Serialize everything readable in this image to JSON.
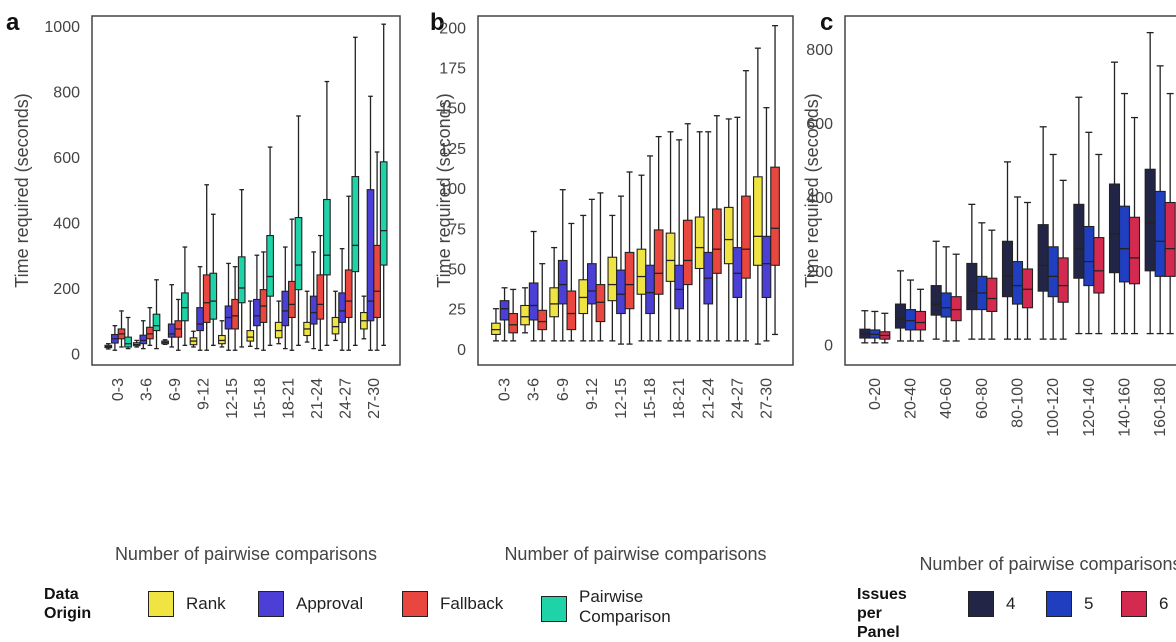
{
  "chart_data": [
    {
      "panel": "a",
      "type": "box",
      "xlabel": "Number of pairwise comparisons",
      "ylabel": "Time required (seconds)",
      "ylim": [
        -35,
        1030
      ],
      "yticks": [
        0,
        200,
        400,
        600,
        800,
        1000
      ],
      "categories": [
        "0-3",
        "3-6",
        "6-9",
        "9-12",
        "12-15",
        "15-18",
        "18-21",
        "21-24",
        "24-27",
        "27-30"
      ],
      "series": [
        {
          "name": "Rank",
          "color": "#f0e442",
          "boxes": [
            {
              "min": 14,
              "q1": 18,
              "med": 21,
              "q3": 25,
              "max": 30
            },
            {
              "min": 20,
              "q1": 24,
              "med": 28,
              "q3": 33,
              "max": 40
            },
            {
              "min": 28,
              "q1": 30,
              "med": 34,
              "q3": 38,
              "max": 42
            },
            {
              "min": 20,
              "q1": 27,
              "med": 38,
              "q3": 48,
              "max": 68
            },
            {
              "min": 20,
              "q1": 30,
              "med": 40,
              "q3": 55,
              "max": 100
            },
            {
              "min": 22,
              "q1": 38,
              "med": 50,
              "q3": 70,
              "max": 160
            },
            {
              "min": 30,
              "q1": 48,
              "med": 70,
              "q3": 95,
              "max": 160
            },
            {
              "min": 35,
              "q1": 55,
              "med": 75,
              "q3": 95,
              "max": 190
            },
            {
              "min": 40,
              "q1": 60,
              "med": 82,
              "q3": 110,
              "max": 190
            },
            {
              "min": 45,
              "q1": 75,
              "med": 100,
              "q3": 125,
              "max": 175
            }
          ]
        },
        {
          "name": "Approval",
          "color": "#4b3fd6",
          "boxes": [
            {
              "min": 10,
              "q1": 32,
              "med": 45,
              "q3": 58,
              "max": 85
            },
            {
              "min": 15,
              "q1": 30,
              "med": 40,
              "q3": 56,
              "max": 100
            },
            {
              "min": 20,
              "q1": 50,
              "med": 60,
              "q3": 90,
              "max": 210
            },
            {
              "min": 10,
              "q1": 70,
              "med": 90,
              "q3": 140,
              "max": 265
            },
            {
              "min": 10,
              "q1": 75,
              "med": 110,
              "q3": 145,
              "max": 275
            },
            {
              "min": 15,
              "q1": 85,
              "med": 115,
              "q3": 165,
              "max": 300
            },
            {
              "min": 15,
              "q1": 85,
              "med": 130,
              "q3": 190,
              "max": 325
            },
            {
              "min": 15,
              "q1": 90,
              "med": 125,
              "q3": 175,
              "max": 310
            },
            {
              "min": 10,
              "q1": 95,
              "med": 130,
              "q3": 185,
              "max": 320
            },
            {
              "min": 10,
              "q1": 100,
              "med": 160,
              "q3": 500,
              "max": 785
            }
          ]
        },
        {
          "name": "Fallback",
          "color": "#e8463f",
          "boxes": [
            {
              "min": 20,
              "q1": 45,
              "med": 60,
              "q3": 75,
              "max": 130
            },
            {
              "min": 25,
              "q1": 45,
              "med": 60,
              "q3": 80,
              "max": 140
            },
            {
              "min": 10,
              "q1": 50,
              "med": 75,
              "q3": 100,
              "max": 165
            },
            {
              "min": 10,
              "q1": 95,
              "med": 155,
              "q3": 240,
              "max": 515
            },
            {
              "min": 10,
              "q1": 75,
              "med": 115,
              "q3": 165,
              "max": 265
            },
            {
              "min": 10,
              "q1": 95,
              "med": 145,
              "q3": 195,
              "max": 310
            },
            {
              "min": 10,
              "q1": 110,
              "med": 150,
              "q3": 220,
              "max": 410
            },
            {
              "min": 10,
              "q1": 105,
              "med": 150,
              "q3": 240,
              "max": 360
            },
            {
              "min": 10,
              "q1": 110,
              "med": 160,
              "q3": 255,
              "max": 480
            },
            {
              "min": 10,
              "q1": 110,
              "med": 190,
              "q3": 330,
              "max": 615
            }
          ]
        },
        {
          "name": "Pairwise Comparison",
          "color": "#1dd3a7",
          "boxes": [
            {
              "min": 15,
              "q1": 20,
              "med": 30,
              "q3": 50,
              "max": 110
            },
            {
              "min": 15,
              "q1": 70,
              "med": 85,
              "q3": 120,
              "max": 225
            },
            {
              "min": 25,
              "q1": 100,
              "med": 140,
              "q3": 185,
              "max": 325
            },
            {
              "min": 25,
              "q1": 105,
              "med": 160,
              "q3": 245,
              "max": 425
            },
            {
              "min": 20,
              "q1": 155,
              "med": 200,
              "q3": 295,
              "max": 500
            },
            {
              "min": 25,
              "q1": 175,
              "med": 235,
              "q3": 360,
              "max": 630
            },
            {
              "min": 25,
              "q1": 195,
              "med": 270,
              "q3": 415,
              "max": 725
            },
            {
              "min": 25,
              "q1": 240,
              "med": 300,
              "q3": 470,
              "max": 830
            },
            {
              "min": 25,
              "q1": 250,
              "med": 330,
              "q3": 540,
              "max": 965
            },
            {
              "min": 25,
              "q1": 270,
              "med": 375,
              "q3": 585,
              "max": 1005
            }
          ]
        }
      ]
    },
    {
      "panel": "b",
      "type": "box",
      "xlabel": "Number of pairwise comparisons",
      "ylabel": "Time required (seconds)",
      "ylim": [
        -10,
        207
      ],
      "yticks": [
        0,
        25,
        50,
        75,
        100,
        125,
        150,
        175,
        200
      ],
      "categories": [
        "0-3",
        "3-6",
        "6-9",
        "9-12",
        "12-15",
        "15-18",
        "18-21",
        "21-24",
        "24-27",
        "27-30"
      ],
      "series": [
        {
          "name": "Rank",
          "color": "#f0e442",
          "boxes": [
            {
              "min": 5,
              "q1": 9,
              "med": 12,
              "q3": 16,
              "max": 25
            },
            {
              "min": 10,
              "q1": 15,
              "med": 20,
              "q3": 27,
              "max": 38
            },
            {
              "min": 5,
              "q1": 20,
              "med": 28,
              "q3": 38,
              "max": 63
            },
            {
              "min": 5,
              "q1": 22,
              "med": 32,
              "q3": 43,
              "max": 83
            },
            {
              "min": 5,
              "q1": 30,
              "med": 40,
              "q3": 57,
              "max": 83
            },
            {
              "min": 5,
              "q1": 34,
              "med": 45,
              "q3": 62,
              "max": 108
            },
            {
              "min": 5,
              "q1": 42,
              "med": 55,
              "q3": 72,
              "max": 135
            },
            {
              "min": 5,
              "q1": 50,
              "med": 63,
              "q3": 82,
              "max": 135
            },
            {
              "min": 5,
              "q1": 53,
              "med": 68,
              "q3": 88,
              "max": 143
            },
            {
              "min": 3,
              "q1": 52,
              "med": 70,
              "q3": 107,
              "max": 187
            }
          ]
        },
        {
          "name": "Approval",
          "color": "#4b3fd6",
          "boxes": [
            {
              "min": 5,
              "q1": 18,
              "med": 25,
              "q3": 30,
              "max": 38
            },
            {
              "min": 5,
              "q1": 18,
              "med": 27,
              "q3": 41,
              "max": 73
            },
            {
              "min": 5,
              "q1": 28,
              "med": 40,
              "q3": 55,
              "max": 99
            },
            {
              "min": 5,
              "q1": 28,
              "med": 36,
              "q3": 53,
              "max": 93
            },
            {
              "min": 3,
              "q1": 22,
              "med": 34,
              "q3": 49,
              "max": 95
            },
            {
              "min": 5,
              "q1": 22,
              "med": 35,
              "q3": 52,
              "max": 120
            },
            {
              "min": 5,
              "q1": 25,
              "med": 37,
              "q3": 52,
              "max": 130
            },
            {
              "min": 5,
              "q1": 28,
              "med": 44,
              "q3": 60,
              "max": 135
            },
            {
              "min": 5,
              "q1": 32,
              "med": 47,
              "q3": 63,
              "max": 144
            },
            {
              "min": 5,
              "q1": 32,
              "med": 53,
              "q3": 70,
              "max": 150
            }
          ]
        },
        {
          "name": "Fallback",
          "color": "#e8463f",
          "boxes": [
            {
              "min": 5,
              "q1": 10,
              "med": 15,
              "q3": 22,
              "max": 37
            },
            {
              "min": 5,
              "q1": 12,
              "med": 17,
              "q3": 24,
              "max": 53
            },
            {
              "min": 5,
              "q1": 12,
              "med": 22,
              "q3": 36,
              "max": 78
            },
            {
              "min": 5,
              "q1": 17,
              "med": 29,
              "q3": 40,
              "max": 97
            },
            {
              "min": 3,
              "q1": 25,
              "med": 40,
              "q3": 60,
              "max": 110
            },
            {
              "min": 5,
              "q1": 34,
              "med": 47,
              "q3": 74,
              "max": 132
            },
            {
              "min": 5,
              "q1": 40,
              "med": 55,
              "q3": 80,
              "max": 140
            },
            {
              "min": 5,
              "q1": 47,
              "med": 62,
              "q3": 87,
              "max": 145
            },
            {
              "min": 5,
              "q1": 44,
              "med": 62,
              "q3": 95,
              "max": 173
            },
            {
              "min": 9,
              "q1": 52,
              "med": 75,
              "q3": 113,
              "max": 201
            }
          ]
        }
      ]
    },
    {
      "panel": "c",
      "type": "box",
      "xlabel": "Number of pairwise comparisons",
      "ylabel": "Time required (seconds)",
      "ylim": [
        -55,
        890
      ],
      "yticks": [
        0,
        200,
        400,
        600,
        800
      ],
      "categories": [
        "0-20",
        "20-40",
        "40-60",
        "60-80",
        "80-100",
        "100-120",
        "120-140",
        "140-160",
        "160-180"
      ],
      "series": [
        {
          "name": "4",
          "color": "#232546",
          "boxes": [
            {
              "min": 5,
              "q1": 18,
              "med": 30,
              "q3": 42,
              "max": 92
            },
            {
              "min": 10,
              "q1": 45,
              "med": 70,
              "q3": 110,
              "max": 200
            },
            {
              "min": 15,
              "q1": 80,
              "med": 110,
              "q3": 160,
              "max": 280
            },
            {
              "min": 15,
              "q1": 95,
              "med": 145,
              "q3": 220,
              "max": 380
            },
            {
              "min": 15,
              "q1": 130,
              "med": 185,
              "q3": 280,
              "max": 495
            },
            {
              "min": 15,
              "q1": 145,
              "med": 215,
              "q3": 325,
              "max": 590
            },
            {
              "min": 30,
              "q1": 180,
              "med": 260,
              "q3": 380,
              "max": 670
            },
            {
              "min": 30,
              "q1": 195,
              "med": 300,
              "q3": 435,
              "max": 765
            },
            {
              "min": 30,
              "q1": 200,
              "med": 330,
              "q3": 475,
              "max": 845
            }
          ]
        },
        {
          "name": "5",
          "color": "#1f3fc0",
          "boxes": [
            {
              "min": 5,
              "q1": 18,
              "med": 28,
              "q3": 40,
              "max": 90
            },
            {
              "min": 10,
              "q1": 40,
              "med": 65,
              "q3": 95,
              "max": 175
            },
            {
              "min": 10,
              "q1": 75,
              "med": 100,
              "q3": 140,
              "max": 265
            },
            {
              "min": 15,
              "q1": 95,
              "med": 140,
              "q3": 185,
              "max": 330
            },
            {
              "min": 15,
              "q1": 110,
              "med": 160,
              "q3": 225,
              "max": 400
            },
            {
              "min": 15,
              "q1": 130,
              "med": 185,
              "q3": 265,
              "max": 515
            },
            {
              "min": 30,
              "q1": 160,
              "med": 225,
              "q3": 320,
              "max": 575
            },
            {
              "min": 30,
              "q1": 170,
              "med": 260,
              "q3": 375,
              "max": 680
            },
            {
              "min": 30,
              "q1": 185,
              "med": 280,
              "q3": 415,
              "max": 755
            }
          ]
        },
        {
          "name": "6",
          "color": "#d42a4f",
          "boxes": [
            {
              "min": 5,
              "q1": 15,
              "med": 25,
              "q3": 35,
              "max": 85
            },
            {
              "min": 10,
              "q1": 40,
              "med": 60,
              "q3": 90,
              "max": 150
            },
            {
              "min": 10,
              "q1": 65,
              "med": 95,
              "q3": 130,
              "max": 245
            },
            {
              "min": 15,
              "q1": 90,
              "med": 125,
              "q3": 180,
              "max": 310
            },
            {
              "min": 15,
              "q1": 100,
              "med": 150,
              "q3": 205,
              "max": 385
            },
            {
              "min": 15,
              "q1": 115,
              "med": 160,
              "q3": 235,
              "max": 445
            },
            {
              "min": 30,
              "q1": 140,
              "med": 200,
              "q3": 290,
              "max": 515
            },
            {
              "min": 30,
              "q1": 165,
              "med": 235,
              "q3": 345,
              "max": 615
            },
            {
              "min": 30,
              "q1": 185,
              "med": 260,
              "q3": 385,
              "max": 680
            }
          ]
        }
      ]
    }
  ],
  "legend_left": {
    "title_line1": "Data",
    "title_line2": "Origin",
    "items": [
      {
        "label_line1": "Rank",
        "label_line2": "",
        "color": "#f0e442"
      },
      {
        "label_line1": "Approval",
        "label_line2": "",
        "color": "#4b3fd6"
      },
      {
        "label_line1": "Fallback",
        "label_line2": "",
        "color": "#e8463f"
      },
      {
        "label_line1": "Pairwise",
        "label_line2": "Comparison",
        "color": "#1dd3a7"
      }
    ]
  },
  "legend_right": {
    "title_line1": "Issues per",
    "title_line2": "Panel",
    "items": [
      {
        "label_line1": "4",
        "color": "#232546"
      },
      {
        "label_line1": "5",
        "color": "#1f3fc0"
      },
      {
        "label_line1": "6",
        "color": "#d42a4f"
      }
    ]
  }
}
